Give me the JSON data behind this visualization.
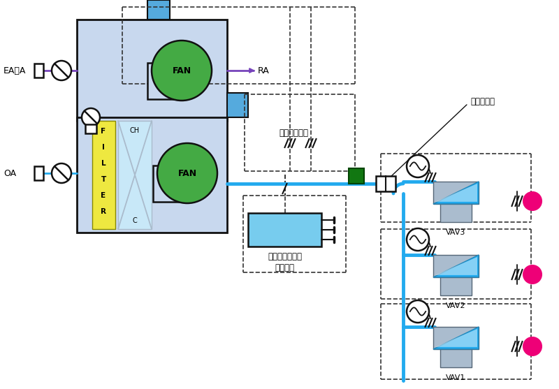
{
  "bg": "#ffffff",
  "ahu_fill": "#c8d8ee",
  "ahu_edge": "#111111",
  "fan_fill": "#44aa44",
  "filter_fill": "#eee840",
  "coil_fill": "#c8e8f8",
  "coil_edge": "#aabbcc",
  "vav_body": "#aabcce",
  "vav_blade": "#22aaee",
  "blue_duct": "#22aaee",
  "purple": "#7744bb",
  "dashed": "#333333",
  "green_sq": "#117711",
  "inverter_fill": "#77ccee",
  "magenta": "#ee0077",
  "black": "#111111",
  "white": "#ffffff",
  "label_ea": "EA・A",
  "label_oa": "OA",
  "label_ra": "RA",
  "label_ch": "CH",
  "label_c": "C",
  "label_inv1": "インバータ制御",
  "label_inv2": "ユニット",
  "label_hp": "高圧限定信号",
  "label_fd": "防火ダンパ",
  "label_vav3": "VAV3",
  "label_vav2": "VAV2",
  "label_vav1": "VAV1",
  "label_filter": [
    "F",
    "I",
    "L",
    "T",
    "E",
    "R"
  ]
}
